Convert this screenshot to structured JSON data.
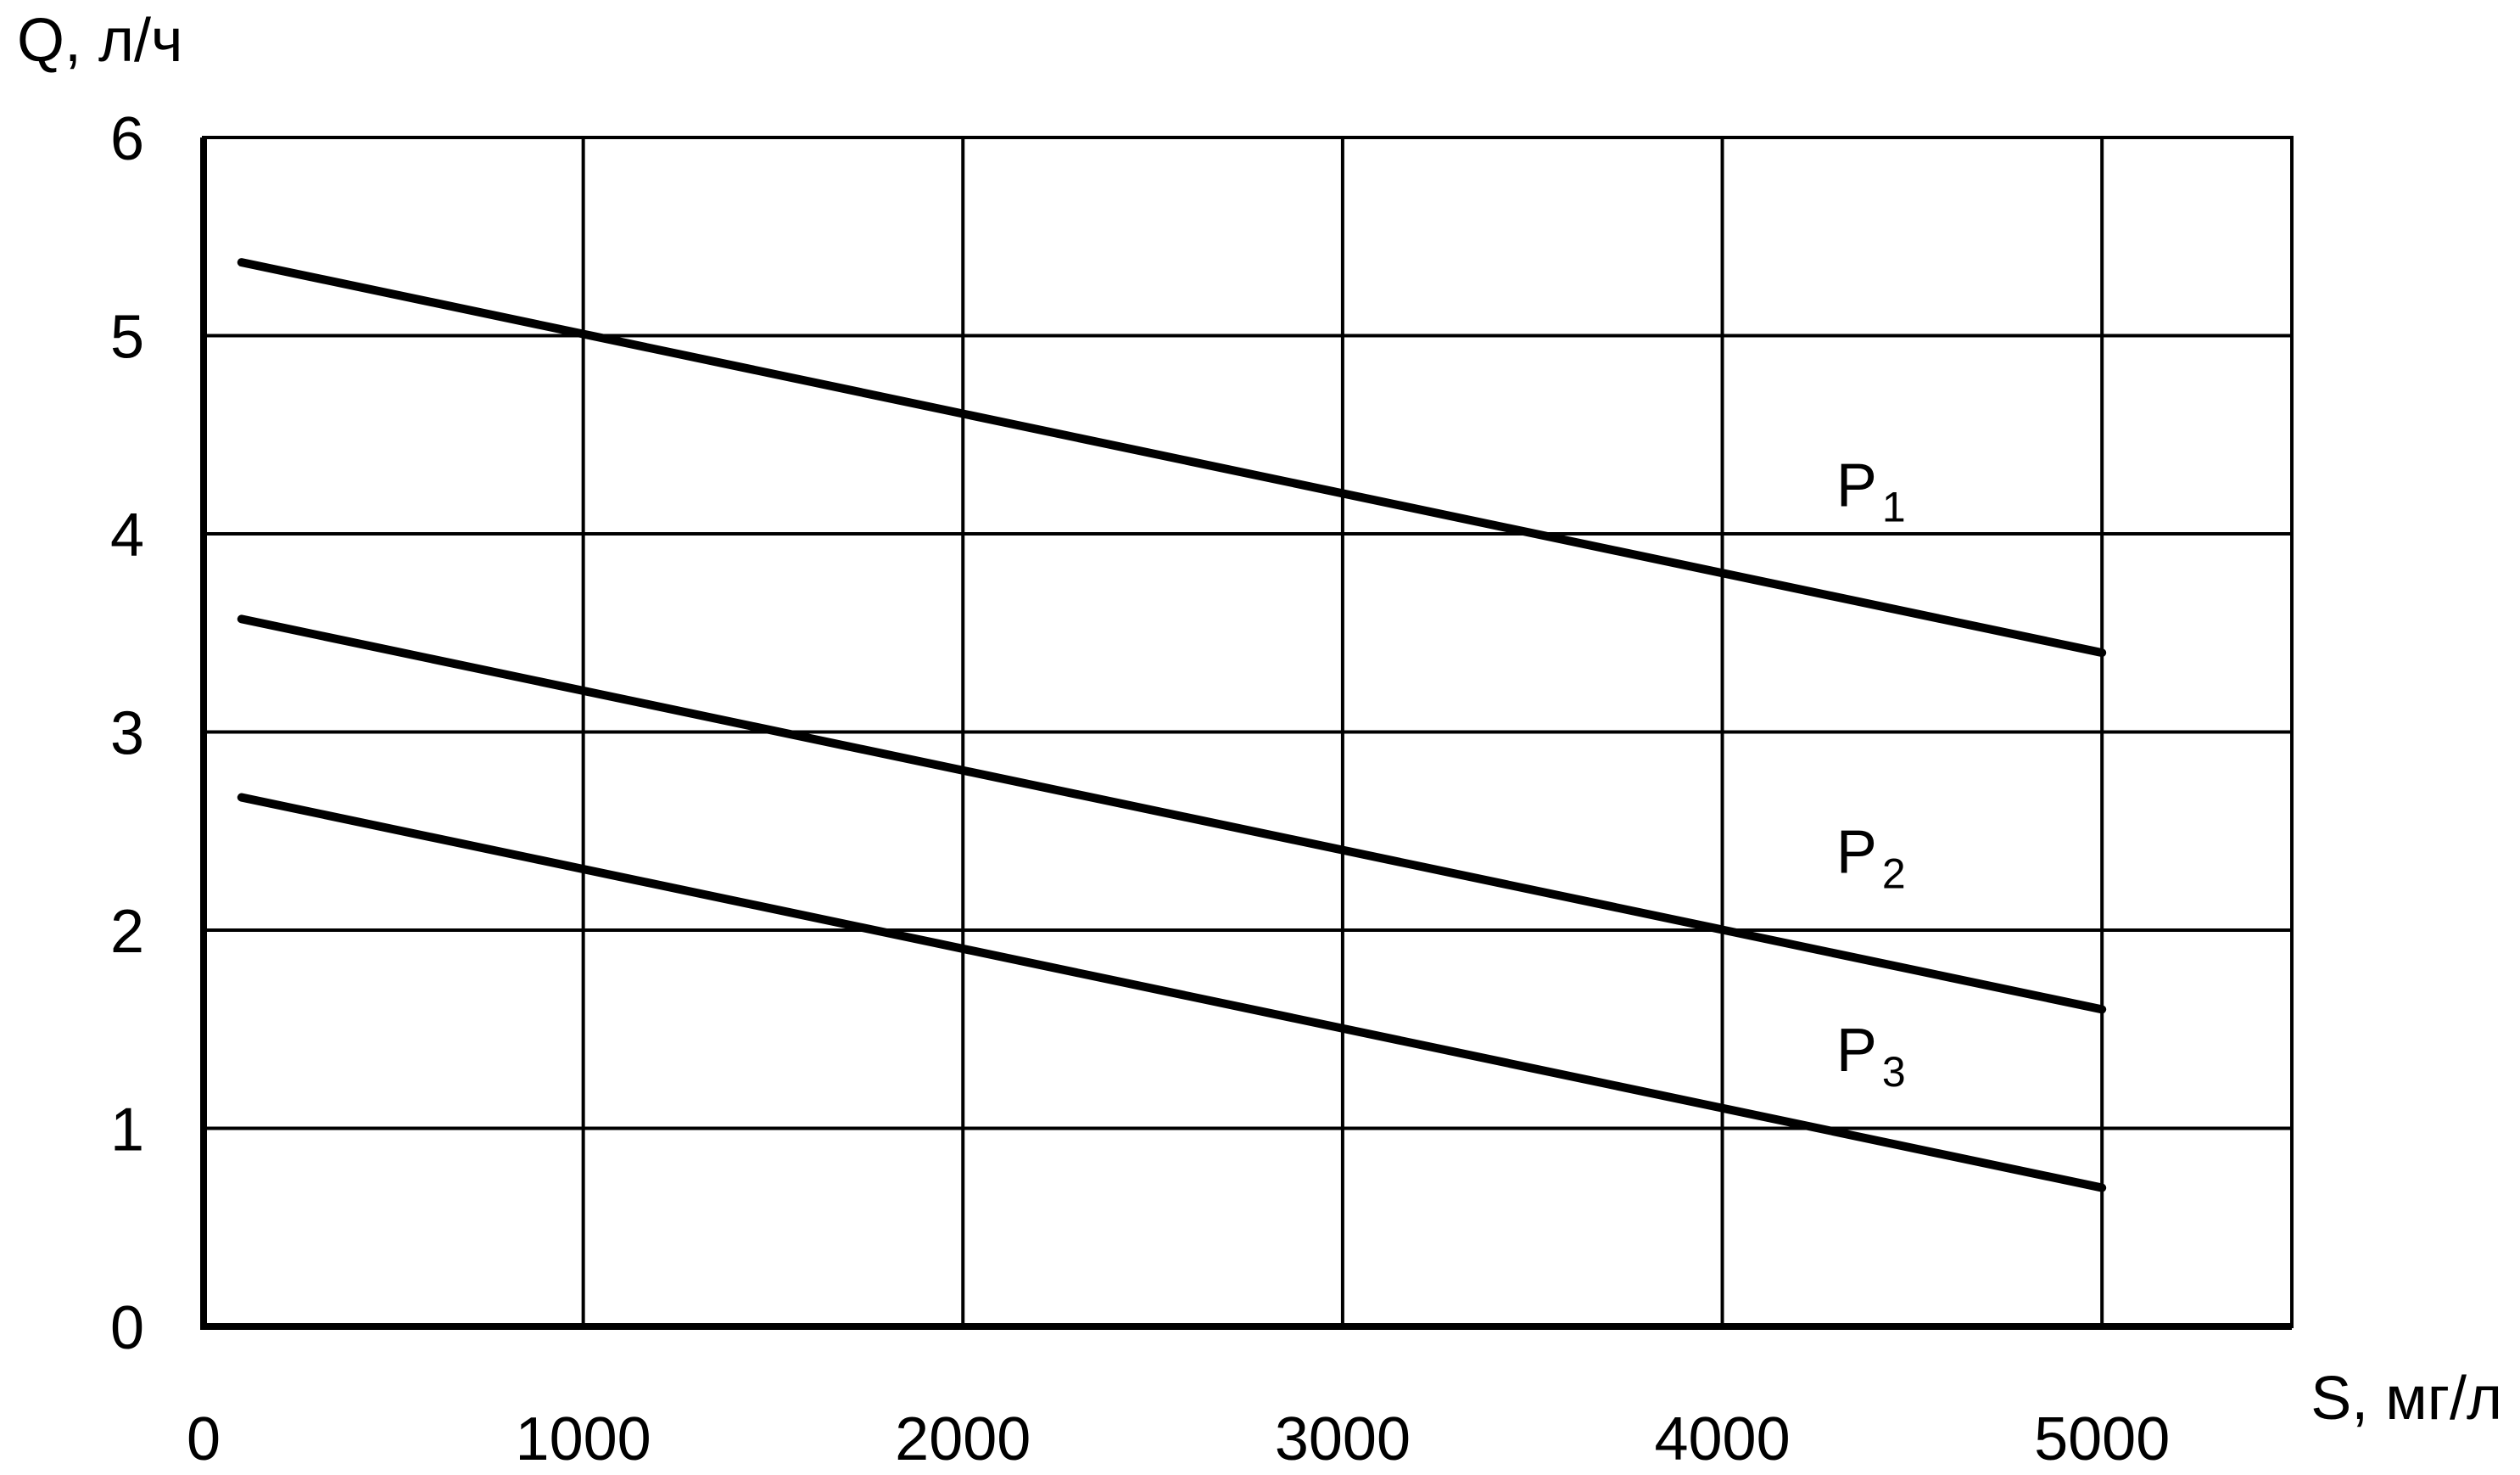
{
  "chart_data": {
    "type": "line",
    "ylabel": "Q, л/ч",
    "xlabel": "S, мг/л",
    "xlim": [
      0,
      5500
    ],
    "ylim": [
      0,
      6
    ],
    "x_ticks": [
      0,
      1000,
      2000,
      3000,
      4000,
      5000
    ],
    "x_tick_labels": [
      "0",
      "1000",
      "2000",
      "3000",
      "4000",
      "5000"
    ],
    "y_ticks": [
      0,
      1,
      2,
      3,
      4,
      5,
      6
    ],
    "y_tick_labels": [
      "0",
      "1",
      "2",
      "3",
      "4",
      "5",
      "6"
    ],
    "grid": true,
    "series": [
      {
        "name": "P",
        "sub": "1",
        "x": [
          100,
          5000
        ],
        "y": [
          5.37,
          3.4
        ],
        "label_at": [
          4300,
          4.25
        ]
      },
      {
        "name": "P",
        "sub": "2",
        "x": [
          100,
          5000
        ],
        "y": [
          3.57,
          1.6
        ],
        "label_at": [
          4300,
          2.4
        ]
      },
      {
        "name": "P",
        "sub": "3",
        "x": [
          100,
          5000
        ],
        "y": [
          2.67,
          0.7
        ],
        "label_at": [
          4300,
          1.4
        ]
      }
    ],
    "colors": {
      "line": "#000000",
      "grid": "#000000"
    }
  }
}
